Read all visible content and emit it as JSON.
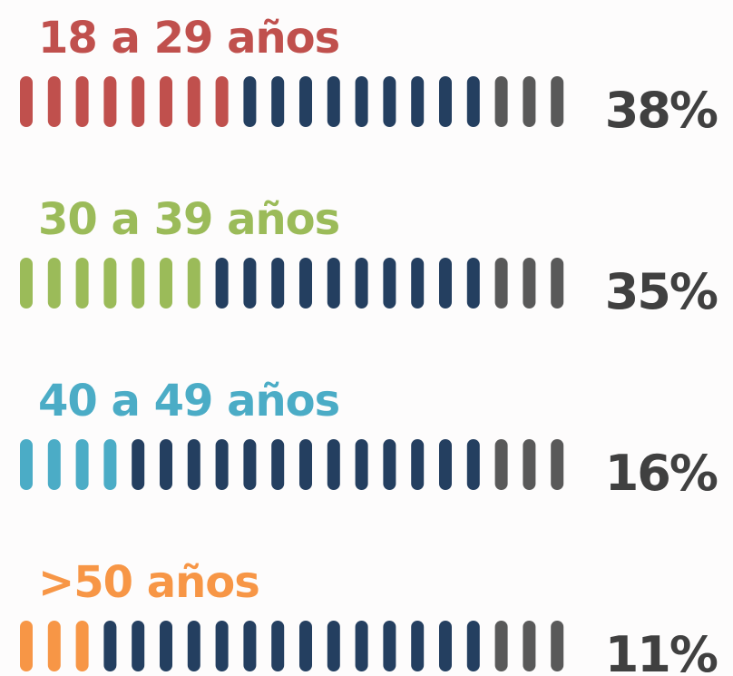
{
  "chart_data": {
    "type": "pictograph",
    "categories": [
      "18 a 29 años",
      "30 a 39 años",
      "40 a 49 años",
      ">50 años"
    ],
    "values": [
      38,
      35,
      16,
      11
    ],
    "value_labels": [
      "38%",
      "35%",
      "16%",
      "11%"
    ],
    "colors": [
      "#c0504d",
      "#9bbb59",
      "#4bacc6",
      "#f79646"
    ],
    "icon_counts": {
      "highlight": [
        8,
        7,
        4,
        3
      ],
      "middle": [
        9,
        10,
        13,
        14
      ],
      "rest": [
        3,
        3,
        3,
        3
      ]
    },
    "middle_color": "#243f60",
    "rest_color": "#595959",
    "value_label_color": "#404040"
  }
}
